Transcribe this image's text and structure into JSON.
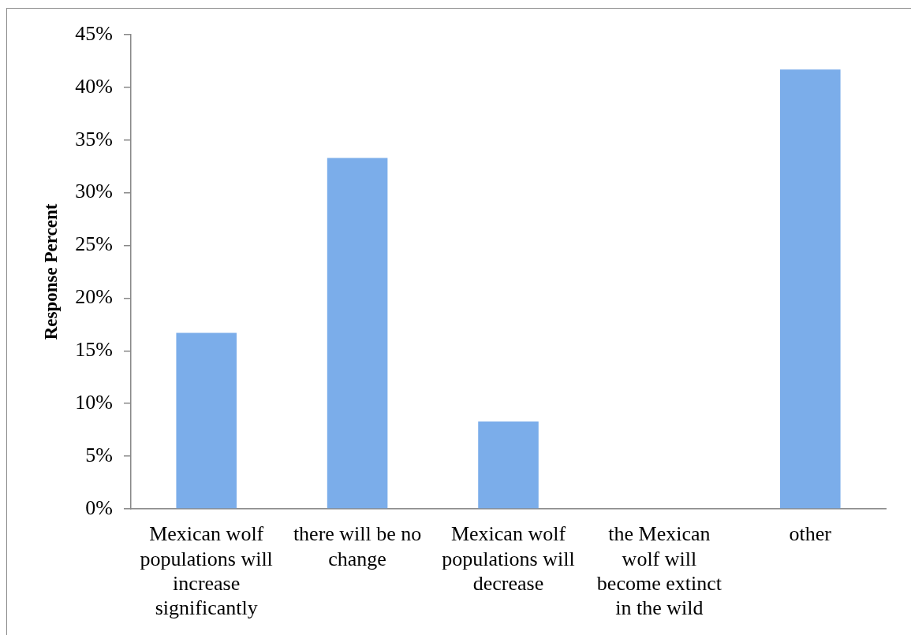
{
  "chart_data": {
    "type": "bar",
    "ylabel": "Response Percent",
    "categories": [
      "Mexican wolf populations will increase significantly",
      "there will be no change",
      "Mexican wolf populations will decrease",
      "the Mexican wolf will become extinct in the wild",
      "other"
    ],
    "values": [
      16.7,
      33.3,
      8.3,
      0,
      41.7
    ],
    "color": "#7badea",
    "ylim": [
      0,
      45
    ],
    "yticks": [
      {
        "value": 0,
        "label": "0%"
      },
      {
        "value": 5,
        "label": "5%"
      },
      {
        "value": 10,
        "label": "10%"
      },
      {
        "value": 15,
        "label": "15%"
      },
      {
        "value": 20,
        "label": "20%"
      },
      {
        "value": 25,
        "label": "25%"
      },
      {
        "value": 30,
        "label": "30%"
      },
      {
        "value": 35,
        "label": "35%"
      },
      {
        "value": 40,
        "label": "40%"
      },
      {
        "value": 45,
        "label": "45%"
      }
    ]
  }
}
